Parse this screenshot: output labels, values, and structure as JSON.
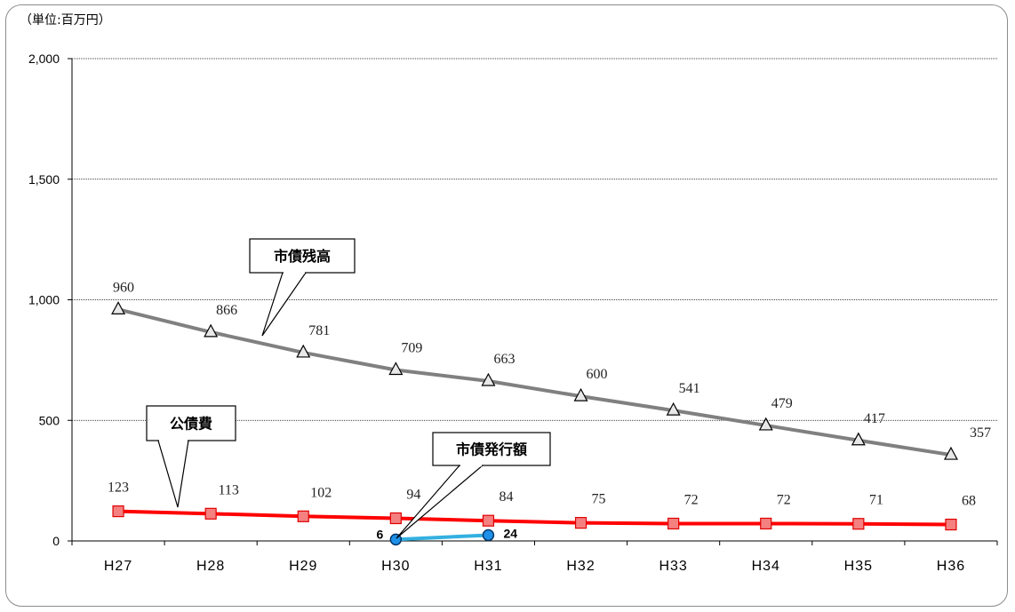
{
  "unit_label": "（単位:百万円）",
  "chart_data": {
    "type": "line",
    "categories": [
      "H27",
      "H28",
      "H29",
      "H30",
      "H31",
      "H32",
      "H33",
      "H34",
      "H35",
      "H36"
    ],
    "ylim": [
      0,
      2000
    ],
    "yticks": [
      "0",
      "500",
      "1,000",
      "1,500",
      "2,000"
    ],
    "ytick_values": [
      0,
      500,
      1000,
      1500,
      2000
    ],
    "grid": true,
    "series": [
      {
        "name": "市債残高",
        "color": "#808080",
        "marker": "triangle",
        "values": [
          960,
          866,
          781,
          709,
          663,
          600,
          541,
          479,
          417,
          357
        ],
        "labels": [
          "960",
          "866",
          "781",
          "709",
          "663",
          "600",
          "541",
          "479",
          "417",
          "357"
        ]
      },
      {
        "name": "公債費",
        "color": "#ff0000",
        "marker": "square",
        "values": [
          123,
          113,
          102,
          94,
          84,
          75,
          72,
          72,
          71,
          68
        ],
        "labels": [
          "123",
          "113",
          "102",
          "94",
          "84",
          "75",
          "72",
          "72",
          "71",
          "68"
        ]
      },
      {
        "name": "市債発行額",
        "color": "#33b0e0",
        "marker": "circle",
        "values": [
          null,
          null,
          null,
          6,
          24,
          null,
          null,
          null,
          null,
          null
        ],
        "labels": [
          "",
          "",
          "",
          "6",
          "24",
          "",
          "",
          "",
          "",
          ""
        ]
      }
    ]
  }
}
